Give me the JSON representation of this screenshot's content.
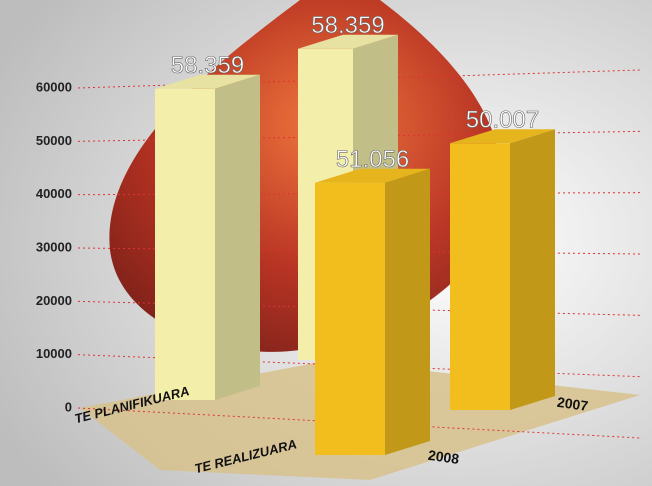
{
  "chart_data": {
    "type": "bar3d",
    "categories": [
      "2008",
      "2007"
    ],
    "series": [
      {
        "name": "TE PLANIFIKUARA",
        "color": "#f3eeaa",
        "values": [
          58359,
          58359
        ],
        "value_labels": [
          "58.359",
          "58.359"
        ]
      },
      {
        "name": "TE REALIZUARA",
        "color": "#f2be1e",
        "values": [
          51056,
          50007
        ],
        "value_labels": [
          "51.056",
          "50.007"
        ]
      }
    ],
    "ylim": [
      0,
      60000
    ],
    "yticks": [
      0,
      10000,
      20000,
      30000,
      40000,
      50000,
      60000
    ],
    "grid": true
  }
}
